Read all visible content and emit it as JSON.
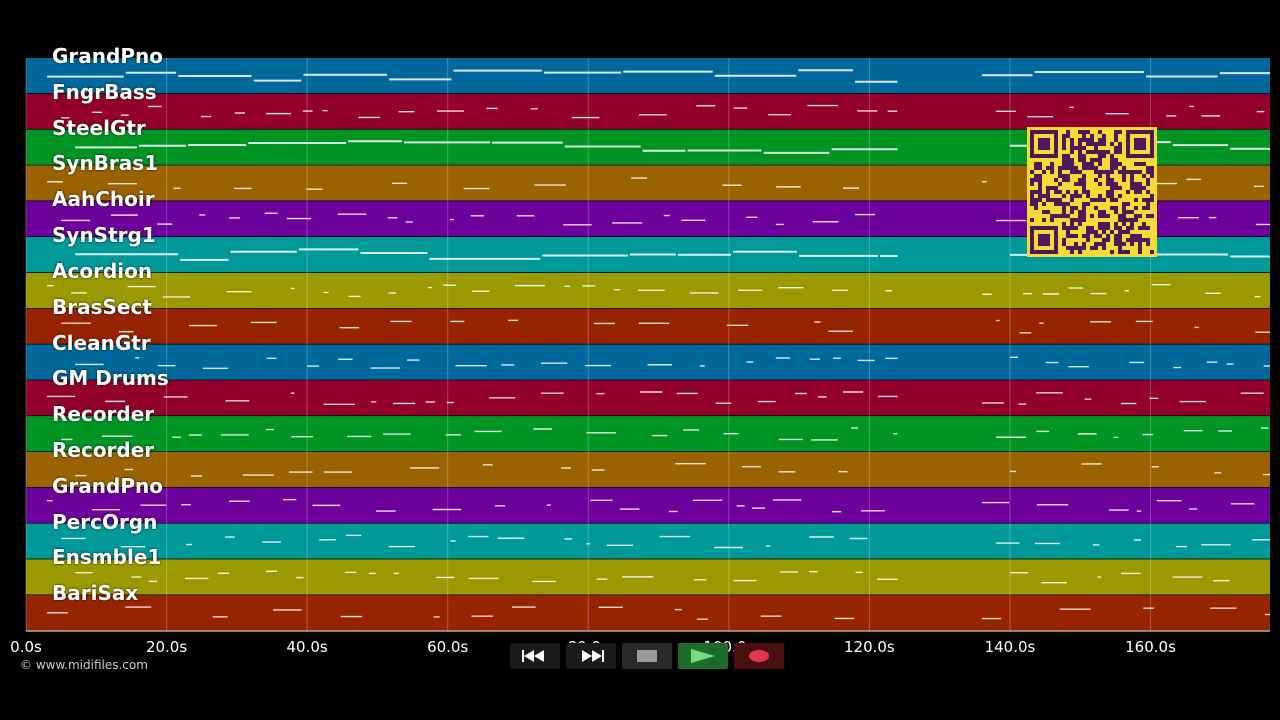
{
  "tracks": [
    {
      "name": "GrandPno",
      "color": "#00689a"
    },
    {
      "name": "FngrBass",
      "color": "#93002e"
    },
    {
      "name": "SteelGtr",
      "color": "#009423"
    },
    {
      "name": "SynBras1",
      "color": "#9b6200"
    },
    {
      "name": "AahChoir",
      "color": "#6d009a"
    },
    {
      "name": "SynStrg1",
      "color": "#00999a"
    },
    {
      "name": "Acordion",
      "color": "#9a9a00"
    },
    {
      "name": "BrasSect",
      "color": "#972400"
    },
    {
      "name": "CleanGtr",
      "color": "#00689a"
    },
    {
      "name": "GM Drums",
      "color": "#93002e"
    },
    {
      "name": "Recorder",
      "color": "#009423"
    },
    {
      "name": "Recorder",
      "color": "#9b6200"
    },
    {
      "name": "GrandPno",
      "color": "#6d009a"
    },
    {
      "name": "PercOrgn",
      "color": "#00999a"
    },
    {
      "name": "Ensmble1",
      "color": "#9a9a00"
    },
    {
      "name": "BariSax",
      "color": "#972400"
    }
  ],
  "timeline": {
    "ticks": [
      "0.0s",
      "20.0s",
      "40.0s",
      "60.0s",
      "80.0s",
      "100.0s",
      "120.0s",
      "140.0s",
      "160.0s"
    ],
    "max_seconds": 177
  },
  "controls": [
    {
      "id": "rewind",
      "icon": "rewind-icon",
      "color": "#1a1a1a"
    },
    {
      "id": "fast-forward",
      "icon": "fast-forward-icon",
      "color": "#1a1a1a"
    },
    {
      "id": "stop",
      "icon": "stop-icon",
      "color": "#2a2a2a"
    },
    {
      "id": "play",
      "icon": "play-icon",
      "color": "#1f6b2a"
    },
    {
      "id": "record",
      "icon": "record-icon",
      "color": "#4a1010"
    }
  ],
  "copyright": "© www.midifiles.com",
  "qr_label": "qr-code"
}
